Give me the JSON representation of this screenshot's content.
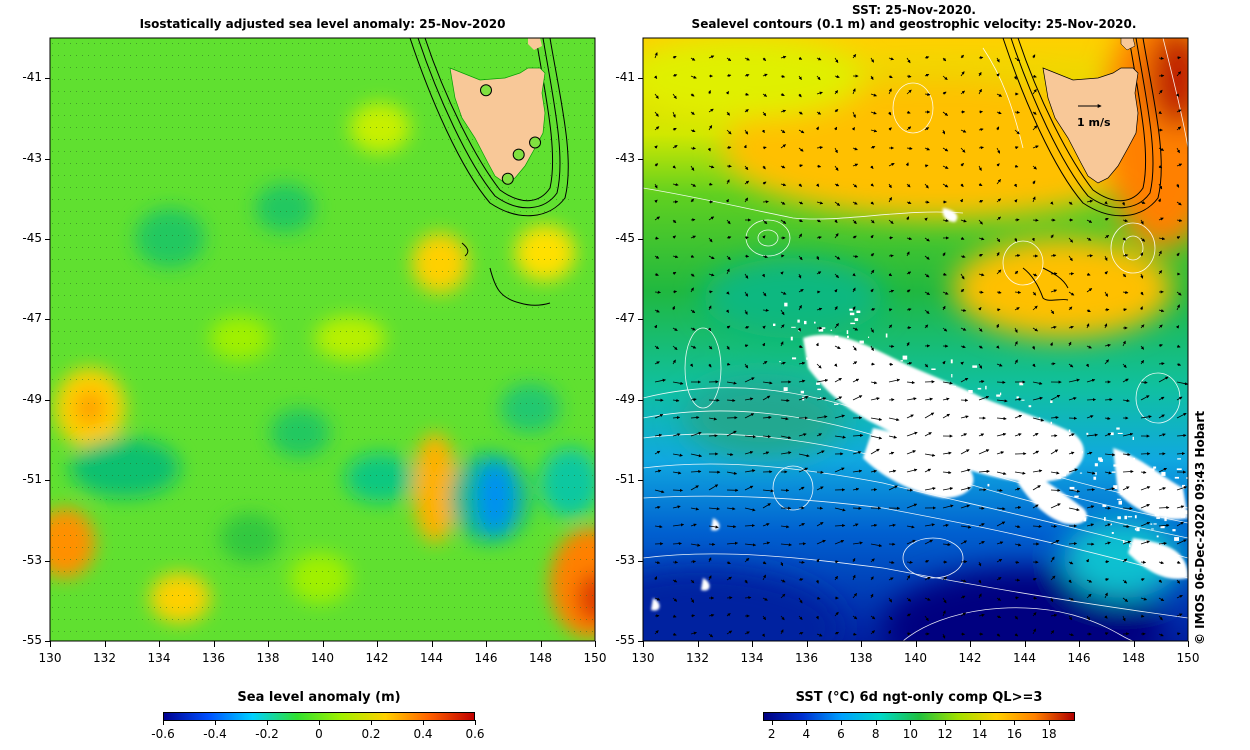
{
  "left_panel": {
    "title": "Isostatically adjusted sea level anomaly: 25-Nov-2020",
    "colorbar_label": "Sea level anomaly (m)",
    "colorbar_ticks": [
      "-0.6",
      "-0.4",
      "-0.2",
      "0",
      "0.2",
      "0.4",
      "0.6"
    ],
    "colorbar_range": [
      -0.6,
      0.6
    ],
    "colorbar_colors": [
      "#000090",
      "#0050ff",
      "#00d0ff",
      "#30e030",
      "#a0f000",
      "#ffd000",
      "#ff6000",
      "#c00000"
    ]
  },
  "right_panel": {
    "title_line1": "SST: 25-Nov-2020.",
    "title_line2": "Sealevel contours (0.1 m) and geostrophic velocity: 25-Nov-2020.",
    "colorbar_label": "SST (°C) 6d ngt-only comp QL>=3",
    "colorbar_ticks": [
      "2",
      "4",
      "6",
      "8",
      "10",
      "12",
      "14",
      "16",
      "18"
    ],
    "colorbar_range": [
      1.5,
      19.5
    ],
    "colorbar_colors": [
      "#000080",
      "#0030d0",
      "#00a0ff",
      "#00d8c8",
      "#20c040",
      "#a0e000",
      "#ffd000",
      "#ff8000",
      "#b00000"
    ],
    "velocity_scale_label": "1 m/s",
    "credit": "© IMOS 06-Dec-2020 09:43 Hobart"
  },
  "axes": {
    "x_ticks": [
      "130",
      "132",
      "134",
      "136",
      "138",
      "140",
      "142",
      "144",
      "146",
      "148",
      "150"
    ],
    "y_ticks": [
      "-41",
      "-43",
      "-45",
      "-47",
      "-49",
      "-51",
      "-53",
      "-55"
    ],
    "lon_range": [
      130,
      150
    ],
    "lat_range": [
      -55,
      -40
    ]
  },
  "colors": {
    "land": "#f8c898",
    "station_marker": "#80e040",
    "sla_background": "#60e030",
    "sst_cloud": "#ffffff"
  },
  "stations": [
    {
      "lon": 146.0,
      "lat": -41.3
    },
    {
      "lon": 147.8,
      "lat": -42.6
    },
    {
      "lon": 147.2,
      "lat": -42.9
    },
    {
      "lon": 146.8,
      "lat": -43.5
    }
  ]
}
